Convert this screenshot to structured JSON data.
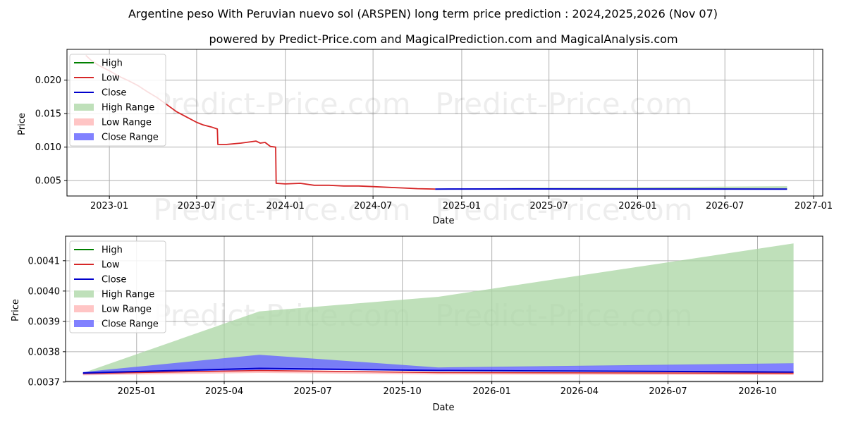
{
  "title": "Argentine peso With Peruvian nuevo sol (ARSPEN) long term price prediction : 2024,2025,2026 (Nov 07)",
  "subtitle": "powered by Predict-Price.com and MagicalPrediction.com and MagicalAnalysis.com",
  "watermark": "Predict-Price.com",
  "colors": {
    "high": "#008000",
    "low": "#d62728",
    "close": "#0000cc",
    "high_range": "#a9d6a3",
    "low_range": "#ffb6b6",
    "close_range": "#6b6bff",
    "grid": "#b0b0b0"
  },
  "legend": [
    "High",
    "Low",
    "Close",
    "High Range",
    "Low Range",
    "Close Range"
  ],
  "chart_data": [
    {
      "type": "line",
      "title": "Argentine peso With Peruvian nuevo sol (ARSPEN) long term price prediction : 2024,2025,2026 (Nov 07)",
      "xlabel": "Date",
      "ylabel": "Price",
      "xlim": [
        "2022-10-05",
        "2027-01-20"
      ],
      "ylim": [
        0.0027,
        0.0246
      ],
      "xticks": [
        "2023-01",
        "2023-07",
        "2024-01",
        "2024-07",
        "2025-01",
        "2025-07",
        "2026-01",
        "2026-07",
        "2027-01"
      ],
      "yticks": [
        "0.005",
        "0.010",
        "0.015",
        "0.020"
      ],
      "history": {
        "name": "Low",
        "x": [
          "2022-11-13",
          "2022-11-25",
          "2022-12-10",
          "2023-01-01",
          "2023-01-20",
          "2023-02-10",
          "2023-03-01",
          "2023-03-20",
          "2023-04-10",
          "2023-05-01",
          "2023-05-20",
          "2023-06-10",
          "2023-07-01",
          "2023-07-15",
          "2023-08-01",
          "2023-08-13",
          "2023-08-14",
          "2023-09-01",
          "2023-10-01",
          "2023-11-01",
          "2023-11-10",
          "2023-11-20",
          "2023-12-01",
          "2023-12-12",
          "2023-12-13",
          "2024-01-01",
          "2024-02-01",
          "2024-03-01",
          "2024-04-01",
          "2024-05-01",
          "2024-06-01",
          "2024-07-01",
          "2024-08-01",
          "2024-09-01",
          "2024-10-01",
          "2024-11-07"
        ],
        "values": [
          0.0237,
          0.0229,
          0.0222,
          0.0214,
          0.0206,
          0.0199,
          0.0192,
          0.0183,
          0.0174,
          0.0163,
          0.0153,
          0.0145,
          0.0137,
          0.0133,
          0.013,
          0.0127,
          0.0104,
          0.0104,
          0.0106,
          0.0109,
          0.0106,
          0.0107,
          0.0101,
          0.01,
          0.0046,
          0.0045,
          0.0046,
          0.0043,
          0.0043,
          0.0042,
          0.0042,
          0.0041,
          0.004,
          0.0039,
          0.0038,
          0.00373
        ]
      },
      "forecast": {
        "x": [
          "2024-11-07",
          "2025-05-07",
          "2025-11-07",
          "2026-11-07"
        ],
        "close": [
          0.00373,
          0.00375,
          0.00374,
          0.00373
        ],
        "high_range_upper": [
          0.00373,
          0.00393,
          0.00398,
          0.00416
        ],
        "low_range_lower": [
          0.00373,
          0.00372,
          0.00372,
          0.00372
        ]
      }
    },
    {
      "type": "area",
      "xlabel": "Date",
      "ylabel": "Price",
      "xlim": [
        "2024-10-20",
        "2026-12-07"
      ],
      "ylim": [
        0.003702,
        0.004181
      ],
      "xticks": [
        "2025-01",
        "2025-04",
        "2025-07",
        "2025-10",
        "2026-01",
        "2026-04",
        "2026-07",
        "2026-10"
      ],
      "yticks": [
        "0.0037",
        "0.0038",
        "0.0039",
        "0.0040",
        "0.0041"
      ],
      "x": [
        "2024-11-07",
        "2025-05-07",
        "2025-11-07",
        "2026-11-07"
      ],
      "high_range": {
        "lower": [
          0.00373,
          0.00375,
          0.003745,
          0.00376
        ],
        "upper": [
          0.00373,
          0.003933,
          0.003981,
          0.004157
        ]
      },
      "close_range": {
        "lower": [
          0.003725,
          0.00374,
          0.003738,
          0.003735
        ],
        "upper": [
          0.003733,
          0.00379,
          0.003748,
          0.003762
        ]
      },
      "low_range": {
        "lower": [
          0.003722,
          0.00373,
          0.003725,
          0.003723
        ],
        "upper": [
          0.00373,
          0.003738,
          0.003733,
          0.003732
        ]
      },
      "close": [
        0.00373,
        0.003745,
        0.003738,
        0.003733
      ],
      "low": [
        0.003728,
        0.003738,
        0.003731,
        0.003729
      ]
    }
  ]
}
